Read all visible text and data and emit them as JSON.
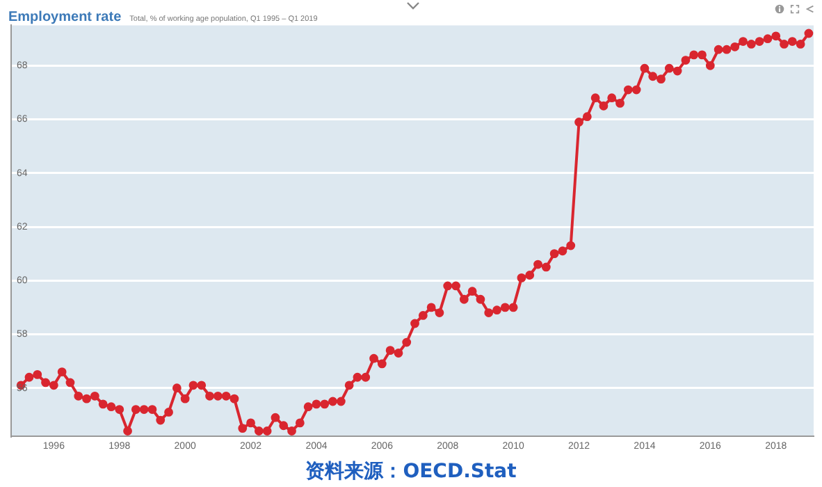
{
  "chart_data": {
    "type": "line",
    "title": "Employment rate",
    "subtitle": "Total, % of working age population, Q1 1995 – Q1 2019",
    "annotations": [
      "资料来源：OECD.Stat"
    ],
    "x": [
      1995,
      1995.25,
      1995.5,
      1995.75,
      1996,
      1996.25,
      1996.5,
      1996.75,
      1997,
      1997.25,
      1997.5,
      1997.75,
      1998,
      1998.25,
      1998.5,
      1998.75,
      1999,
      1999.25,
      1999.5,
      1999.75,
      2000,
      2000.25,
      2000.5,
      2000.75,
      2001,
      2001.25,
      2001.5,
      2001.75,
      2002,
      2002.25,
      2002.5,
      2002.75,
      2003,
      2003.25,
      2003.5,
      2003.75,
      2004,
      2004.25,
      2004.5,
      2004.75,
      2005,
      2005.25,
      2005.5,
      2005.75,
      2006,
      2006.25,
      2006.5,
      2006.75,
      2007,
      2007.25,
      2007.5,
      2007.75,
      2008,
      2008.25,
      2008.5,
      2008.75,
      2009,
      2009.25,
      2009.5,
      2009.75,
      2010,
      2010.25,
      2010.5,
      2010.75,
      2011,
      2011.25,
      2011.5,
      2011.75,
      2012,
      2012.25,
      2012.5,
      2012.75,
      2013,
      2013.25,
      2013.5,
      2013.75,
      2014,
      2014.25,
      2014.5,
      2014.75,
      2015,
      2015.25,
      2015.5,
      2015.75,
      2016,
      2016.25,
      2016.5,
      2016.75,
      2017,
      2017.25,
      2017.5,
      2017.75,
      2018,
      2018.25,
      2018.5,
      2018.75,
      2019
    ],
    "series": [
      {
        "color": "#d9262f",
        "values": [
          56.1,
          56.4,
          56.5,
          56.2,
          56.1,
          56.6,
          56.2,
          55.7,
          55.6,
          55.7,
          55.4,
          55.3,
          55.2,
          54.4,
          55.2,
          55.2,
          55.2,
          54.8,
          55.1,
          56.0,
          55.6,
          56.1,
          56.1,
          55.7,
          55.7,
          55.7,
          55.6,
          54.5,
          54.7,
          54.4,
          54.4,
          54.9,
          54.6,
          54.4,
          54.7,
          55.3,
          55.4,
          55.4,
          55.5,
          55.5,
          56.1,
          56.4,
          56.4,
          57.1,
          56.9,
          57.4,
          57.3,
          57.7,
          58.4,
          58.7,
          59.0,
          58.8,
          59.8,
          59.8,
          59.3,
          59.6,
          59.3,
          58.8,
          58.9,
          59.0,
          59.0,
          60.1,
          60.2,
          60.6,
          60.5,
          61.0,
          61.1,
          61.3,
          65.9,
          66.1,
          66.8,
          66.5,
          66.8,
          66.6,
          67.1,
          67.1,
          67.9,
          67.6,
          67.5,
          67.9,
          67.8,
          68.2,
          68.4,
          68.4,
          68.0,
          68.6,
          68.6,
          68.7,
          68.9,
          68.8,
          68.9,
          69.0,
          69.1,
          68.8,
          68.9,
          68.8,
          69.2
        ]
      }
    ],
    "xlim": [
      1994.7,
      2019.15
    ],
    "xticks": [
      1996,
      1998,
      2000,
      2002,
      2004,
      2006,
      2008,
      2010,
      2012,
      2014,
      2016,
      2018
    ],
    "ylim": [
      54.2,
      69.5
    ],
    "yticks": [
      56,
      58,
      60,
      62,
      64,
      66,
      68
    ],
    "grid": "y",
    "legend": false,
    "marker": "circle",
    "line_style": "solid"
  }
}
